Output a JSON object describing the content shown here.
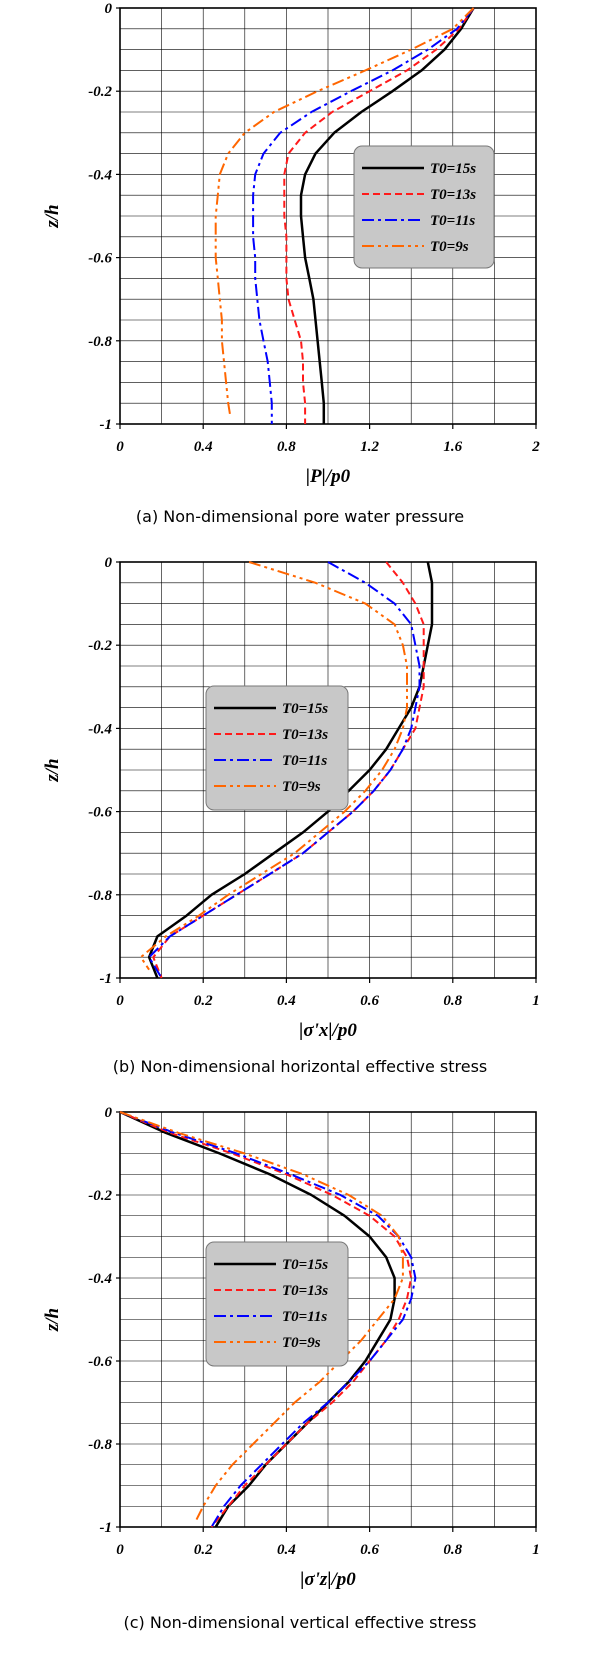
{
  "chart_data": [
    {
      "type": "line",
      "caption": "(a) Non-dimensional pore water pressure",
      "xlabel": "|P|/p0",
      "ylabel": "z/h",
      "xlim": [
        0,
        2
      ],
      "ylim": [
        -1,
        0
      ],
      "xticks": [
        "0",
        "0.4",
        "0.8",
        "1.2",
        "1.6",
        "2"
      ],
      "yticks": [
        "0",
        "-0.2",
        "-0.4",
        "-0.6",
        "-0.8",
        "-1"
      ],
      "legend_position": "right-middle",
      "series": [
        {
          "name": "T0=15s",
          "color": "#000000",
          "dash": "solid",
          "x": [
            1.7,
            1.64,
            1.56,
            1.45,
            1.31,
            1.16,
            1.03,
            0.94,
            0.89,
            0.87,
            0.87,
            0.88,
            0.89,
            0.91,
            0.93,
            0.94,
            0.95,
            0.96,
            0.97,
            0.98,
            0.98
          ],
          "y": [
            0,
            -0.05,
            -0.1,
            -0.15,
            -0.2,
            -0.25,
            -0.3,
            -0.35,
            -0.4,
            -0.45,
            -0.5,
            -0.55,
            -0.6,
            -0.65,
            -0.7,
            -0.75,
            -0.8,
            -0.85,
            -0.9,
            -0.95,
            -1.0
          ]
        },
        {
          "name": "T0=13s",
          "color": "#ff1a1a",
          "dash": "dash",
          "x": [
            1.7,
            1.63,
            1.52,
            1.38,
            1.2,
            1.02,
            0.89,
            0.81,
            0.79,
            0.79,
            0.79,
            0.8,
            0.8,
            0.8,
            0.81,
            0.84,
            0.87,
            0.88,
            0.88,
            0.89,
            0.89
          ],
          "y": [
            0,
            -0.05,
            -0.1,
            -0.15,
            -0.2,
            -0.25,
            -0.3,
            -0.35,
            -0.4,
            -0.45,
            -0.5,
            -0.55,
            -0.6,
            -0.65,
            -0.7,
            -0.75,
            -0.8,
            -0.85,
            -0.9,
            -0.95,
            -1.0
          ]
        },
        {
          "name": "T0=11s",
          "color": "#0000ff",
          "dash": "dashdot",
          "x": [
            1.7,
            1.62,
            1.48,
            1.31,
            1.11,
            0.92,
            0.77,
            0.69,
            0.65,
            0.64,
            0.64,
            0.64,
            0.65,
            0.65,
            0.66,
            0.67,
            0.69,
            0.71,
            0.72,
            0.73,
            0.73
          ],
          "y": [
            0,
            -0.05,
            -0.1,
            -0.15,
            -0.2,
            -0.25,
            -0.3,
            -0.35,
            -0.4,
            -0.45,
            -0.5,
            -0.55,
            -0.6,
            -0.65,
            -0.7,
            -0.75,
            -0.8,
            -0.85,
            -0.9,
            -0.95,
            -1.0
          ]
        },
        {
          "name": "T0=9s",
          "color": "#ff6600",
          "dash": "dashdotdot",
          "x": [
            1.7,
            1.6,
            1.4,
            1.18,
            0.95,
            0.74,
            0.6,
            0.52,
            0.48,
            0.47,
            0.46,
            0.46,
            0.46,
            0.47,
            0.48,
            0.49,
            0.49,
            0.5,
            0.51,
            0.52,
            0.53
          ],
          "y": [
            0,
            -0.05,
            -0.1,
            -0.15,
            -0.2,
            -0.25,
            -0.3,
            -0.35,
            -0.4,
            -0.45,
            -0.5,
            -0.55,
            -0.6,
            -0.65,
            -0.7,
            -0.75,
            -0.8,
            -0.85,
            -0.9,
            -0.95,
            -0.98
          ]
        }
      ]
    },
    {
      "type": "line",
      "caption": "(b) Non-dimensional horizontal effective stress",
      "xlabel": "|σ'x|/p0",
      "ylabel": "z/h",
      "xlim": [
        0,
        1
      ],
      "ylim": [
        -1,
        0
      ],
      "xticks": [
        "0",
        "0.2",
        "0.4",
        "0.6",
        "0.8",
        "1"
      ],
      "yticks": [
        "0",
        "-0.2",
        "-0.4",
        "-0.6",
        "-0.8",
        "-1"
      ],
      "legend_position": "left-middle",
      "series": [
        {
          "name": "T0=15s",
          "color": "#000000",
          "dash": "solid",
          "x": [
            0.74,
            0.75,
            0.75,
            0.75,
            0.74,
            0.73,
            0.72,
            0.7,
            0.67,
            0.64,
            0.6,
            0.55,
            0.5,
            0.44,
            0.37,
            0.3,
            0.22,
            0.16,
            0.09,
            0.07,
            0.09
          ],
          "y": [
            0,
            -0.05,
            -0.1,
            -0.15,
            -0.2,
            -0.25,
            -0.3,
            -0.35,
            -0.4,
            -0.45,
            -0.5,
            -0.55,
            -0.6,
            -0.65,
            -0.7,
            -0.75,
            -0.8,
            -0.85,
            -0.9,
            -0.95,
            -1.0
          ]
        },
        {
          "name": "T0=13s",
          "color": "#ff1a1a",
          "dash": "dash",
          "x": [
            0.64,
            0.68,
            0.71,
            0.73,
            0.73,
            0.73,
            0.73,
            0.72,
            0.71,
            0.68,
            0.65,
            0.61,
            0.56,
            0.5,
            0.44,
            0.36,
            0.28,
            0.2,
            0.12,
            0.08,
            0.1
          ],
          "y": [
            0,
            -0.05,
            -0.1,
            -0.15,
            -0.2,
            -0.25,
            -0.3,
            -0.35,
            -0.4,
            -0.45,
            -0.5,
            -0.55,
            -0.6,
            -0.65,
            -0.7,
            -0.75,
            -0.8,
            -0.85,
            -0.9,
            -0.95,
            -1.0
          ]
        },
        {
          "name": "T0=11s",
          "color": "#0000ff",
          "dash": "dashdot",
          "x": [
            0.5,
            0.59,
            0.66,
            0.7,
            0.71,
            0.72,
            0.72,
            0.71,
            0.7,
            0.68,
            0.65,
            0.61,
            0.56,
            0.5,
            0.44,
            0.36,
            0.28,
            0.2,
            0.12,
            0.07,
            0.1
          ],
          "y": [
            0,
            -0.05,
            -0.1,
            -0.15,
            -0.2,
            -0.25,
            -0.3,
            -0.35,
            -0.4,
            -0.45,
            -0.5,
            -0.55,
            -0.6,
            -0.65,
            -0.7,
            -0.75,
            -0.8,
            -0.85,
            -0.9,
            -0.95,
            -1.0
          ]
        },
        {
          "name": "T0=9s",
          "color": "#ff6600",
          "dash": "dashdotdot",
          "x": [
            0.31,
            0.47,
            0.59,
            0.66,
            0.68,
            0.69,
            0.69,
            0.69,
            0.68,
            0.66,
            0.63,
            0.59,
            0.54,
            0.48,
            0.42,
            0.34,
            0.26,
            0.19,
            0.11,
            0.05,
            0.07
          ],
          "y": [
            0,
            -0.05,
            -0.1,
            -0.15,
            -0.2,
            -0.25,
            -0.3,
            -0.35,
            -0.4,
            -0.45,
            -0.5,
            -0.55,
            -0.6,
            -0.65,
            -0.7,
            -0.75,
            -0.8,
            -0.85,
            -0.9,
            -0.95,
            -0.98
          ]
        }
      ]
    },
    {
      "type": "line",
      "caption": "(c) Non-dimensional vertical effective stress",
      "xlabel": "|σ'z|/p0",
      "ylabel": "z/h",
      "xlim": [
        0,
        1
      ],
      "ylim": [
        -1,
        0
      ],
      "xticks": [
        "0",
        "0.2",
        "0.4",
        "0.6",
        "0.8",
        "1"
      ],
      "yticks": [
        "0",
        "-0.2",
        "-0.4",
        "-0.6",
        "-0.8",
        "-1"
      ],
      "legend_position": "left-middle",
      "series": [
        {
          "name": "T0=15s",
          "color": "#000000",
          "dash": "solid",
          "x": [
            0,
            0.11,
            0.24,
            0.36,
            0.46,
            0.54,
            0.6,
            0.64,
            0.66,
            0.66,
            0.65,
            0.62,
            0.59,
            0.55,
            0.5,
            0.45,
            0.4,
            0.35,
            0.31,
            0.26,
            0.23
          ],
          "y": [
            0,
            -0.05,
            -0.1,
            -0.15,
            -0.2,
            -0.25,
            -0.3,
            -0.35,
            -0.4,
            -0.45,
            -0.5,
            -0.55,
            -0.6,
            -0.65,
            -0.7,
            -0.75,
            -0.8,
            -0.85,
            -0.9,
            -0.95,
            -1.0
          ]
        },
        {
          "name": "T0=13s",
          "color": "#ff1a1a",
          "dash": "dash",
          "x": [
            0,
            0.12,
            0.27,
            0.4,
            0.51,
            0.6,
            0.66,
            0.69,
            0.7,
            0.69,
            0.67,
            0.64,
            0.6,
            0.56,
            0.51,
            0.45,
            0.4,
            0.35,
            0.3,
            0.26,
            0.22
          ],
          "y": [
            0,
            -0.05,
            -0.1,
            -0.15,
            -0.2,
            -0.25,
            -0.3,
            -0.35,
            -0.4,
            -0.45,
            -0.5,
            -0.55,
            -0.6,
            -0.65,
            -0.7,
            -0.75,
            -0.8,
            -0.85,
            -0.9,
            -0.95,
            -1.0
          ]
        },
        {
          "name": "T0=11s",
          "color": "#0000ff",
          "dash": "dashdot",
          "x": [
            0,
            0.13,
            0.28,
            0.41,
            0.53,
            0.62,
            0.67,
            0.7,
            0.71,
            0.7,
            0.68,
            0.64,
            0.6,
            0.55,
            0.5,
            0.44,
            0.39,
            0.34,
            0.29,
            0.25,
            0.22
          ],
          "y": [
            0,
            -0.05,
            -0.1,
            -0.15,
            -0.2,
            -0.25,
            -0.3,
            -0.35,
            -0.4,
            -0.45,
            -0.5,
            -0.55,
            -0.6,
            -0.65,
            -0.7,
            -0.75,
            -0.8,
            -0.85,
            -0.9,
            -0.95,
            -1.0
          ]
        },
        {
          "name": "T0=9s",
          "color": "#ff6600",
          "dash": "dashdotdot",
          "x": [
            0,
            0.14,
            0.3,
            0.44,
            0.55,
            0.63,
            0.67,
            0.68,
            0.68,
            0.66,
            0.62,
            0.58,
            0.53,
            0.48,
            0.42,
            0.37,
            0.32,
            0.27,
            0.23,
            0.2,
            0.18
          ],
          "y": [
            0,
            -0.05,
            -0.1,
            -0.15,
            -0.2,
            -0.25,
            -0.3,
            -0.35,
            -0.4,
            -0.45,
            -0.5,
            -0.55,
            -0.6,
            -0.65,
            -0.7,
            -0.75,
            -0.8,
            -0.85,
            -0.9,
            -0.95,
            -0.99
          ]
        }
      ]
    }
  ],
  "legend_bg": "#c8c8c8"
}
